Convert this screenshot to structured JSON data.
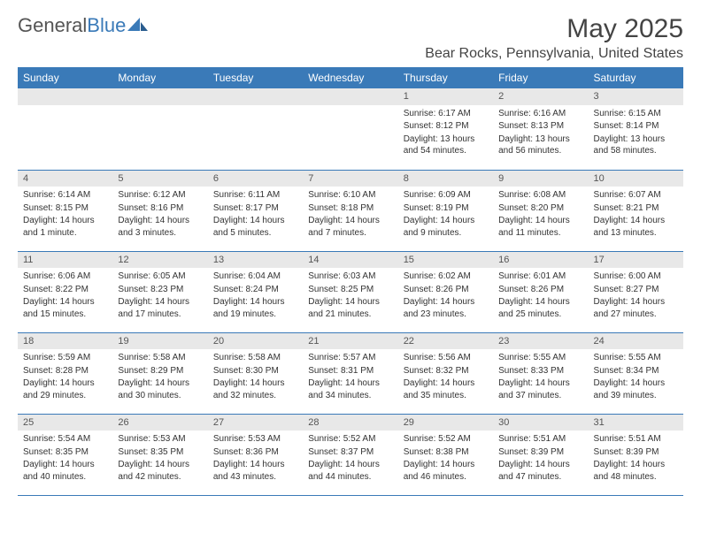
{
  "logo": {
    "part1": "General",
    "part2": "Blue"
  },
  "title": "May 2025",
  "location": "Bear Rocks, Pennsylvania, United States",
  "colors": {
    "header_bg": "#3a7ab8",
    "header_text": "#ffffff",
    "daynum_bg": "#e8e8e8",
    "row_border": "#3a7ab8",
    "body_text": "#333333",
    "logo_gray": "#555555",
    "logo_blue": "#3a7ab8",
    "page_bg": "#ffffff"
  },
  "typography": {
    "month_title_fontsize": 30,
    "location_fontsize": 16,
    "dayheader_fontsize": 12,
    "cell_fontsize": 10
  },
  "dayNames": [
    "Sunday",
    "Monday",
    "Tuesday",
    "Wednesday",
    "Thursday",
    "Friday",
    "Saturday"
  ],
  "weeks": [
    [
      {
        "n": "",
        "sunrise": "",
        "sunset": "",
        "daylight": ""
      },
      {
        "n": "",
        "sunrise": "",
        "sunset": "",
        "daylight": ""
      },
      {
        "n": "",
        "sunrise": "",
        "sunset": "",
        "daylight": ""
      },
      {
        "n": "",
        "sunrise": "",
        "sunset": "",
        "daylight": ""
      },
      {
        "n": "1",
        "sunrise": "Sunrise: 6:17 AM",
        "sunset": "Sunset: 8:12 PM",
        "daylight": "Daylight: 13 hours and 54 minutes."
      },
      {
        "n": "2",
        "sunrise": "Sunrise: 6:16 AM",
        "sunset": "Sunset: 8:13 PM",
        "daylight": "Daylight: 13 hours and 56 minutes."
      },
      {
        "n": "3",
        "sunrise": "Sunrise: 6:15 AM",
        "sunset": "Sunset: 8:14 PM",
        "daylight": "Daylight: 13 hours and 58 minutes."
      }
    ],
    [
      {
        "n": "4",
        "sunrise": "Sunrise: 6:14 AM",
        "sunset": "Sunset: 8:15 PM",
        "daylight": "Daylight: 14 hours and 1 minute."
      },
      {
        "n": "5",
        "sunrise": "Sunrise: 6:12 AM",
        "sunset": "Sunset: 8:16 PM",
        "daylight": "Daylight: 14 hours and 3 minutes."
      },
      {
        "n": "6",
        "sunrise": "Sunrise: 6:11 AM",
        "sunset": "Sunset: 8:17 PM",
        "daylight": "Daylight: 14 hours and 5 minutes."
      },
      {
        "n": "7",
        "sunrise": "Sunrise: 6:10 AM",
        "sunset": "Sunset: 8:18 PM",
        "daylight": "Daylight: 14 hours and 7 minutes."
      },
      {
        "n": "8",
        "sunrise": "Sunrise: 6:09 AM",
        "sunset": "Sunset: 8:19 PM",
        "daylight": "Daylight: 14 hours and 9 minutes."
      },
      {
        "n": "9",
        "sunrise": "Sunrise: 6:08 AM",
        "sunset": "Sunset: 8:20 PM",
        "daylight": "Daylight: 14 hours and 11 minutes."
      },
      {
        "n": "10",
        "sunrise": "Sunrise: 6:07 AM",
        "sunset": "Sunset: 8:21 PM",
        "daylight": "Daylight: 14 hours and 13 minutes."
      }
    ],
    [
      {
        "n": "11",
        "sunrise": "Sunrise: 6:06 AM",
        "sunset": "Sunset: 8:22 PM",
        "daylight": "Daylight: 14 hours and 15 minutes."
      },
      {
        "n": "12",
        "sunrise": "Sunrise: 6:05 AM",
        "sunset": "Sunset: 8:23 PM",
        "daylight": "Daylight: 14 hours and 17 minutes."
      },
      {
        "n": "13",
        "sunrise": "Sunrise: 6:04 AM",
        "sunset": "Sunset: 8:24 PM",
        "daylight": "Daylight: 14 hours and 19 minutes."
      },
      {
        "n": "14",
        "sunrise": "Sunrise: 6:03 AM",
        "sunset": "Sunset: 8:25 PM",
        "daylight": "Daylight: 14 hours and 21 minutes."
      },
      {
        "n": "15",
        "sunrise": "Sunrise: 6:02 AM",
        "sunset": "Sunset: 8:26 PM",
        "daylight": "Daylight: 14 hours and 23 minutes."
      },
      {
        "n": "16",
        "sunrise": "Sunrise: 6:01 AM",
        "sunset": "Sunset: 8:26 PM",
        "daylight": "Daylight: 14 hours and 25 minutes."
      },
      {
        "n": "17",
        "sunrise": "Sunrise: 6:00 AM",
        "sunset": "Sunset: 8:27 PM",
        "daylight": "Daylight: 14 hours and 27 minutes."
      }
    ],
    [
      {
        "n": "18",
        "sunrise": "Sunrise: 5:59 AM",
        "sunset": "Sunset: 8:28 PM",
        "daylight": "Daylight: 14 hours and 29 minutes."
      },
      {
        "n": "19",
        "sunrise": "Sunrise: 5:58 AM",
        "sunset": "Sunset: 8:29 PM",
        "daylight": "Daylight: 14 hours and 30 minutes."
      },
      {
        "n": "20",
        "sunrise": "Sunrise: 5:58 AM",
        "sunset": "Sunset: 8:30 PM",
        "daylight": "Daylight: 14 hours and 32 minutes."
      },
      {
        "n": "21",
        "sunrise": "Sunrise: 5:57 AM",
        "sunset": "Sunset: 8:31 PM",
        "daylight": "Daylight: 14 hours and 34 minutes."
      },
      {
        "n": "22",
        "sunrise": "Sunrise: 5:56 AM",
        "sunset": "Sunset: 8:32 PM",
        "daylight": "Daylight: 14 hours and 35 minutes."
      },
      {
        "n": "23",
        "sunrise": "Sunrise: 5:55 AM",
        "sunset": "Sunset: 8:33 PM",
        "daylight": "Daylight: 14 hours and 37 minutes."
      },
      {
        "n": "24",
        "sunrise": "Sunrise: 5:55 AM",
        "sunset": "Sunset: 8:34 PM",
        "daylight": "Daylight: 14 hours and 39 minutes."
      }
    ],
    [
      {
        "n": "25",
        "sunrise": "Sunrise: 5:54 AM",
        "sunset": "Sunset: 8:35 PM",
        "daylight": "Daylight: 14 hours and 40 minutes."
      },
      {
        "n": "26",
        "sunrise": "Sunrise: 5:53 AM",
        "sunset": "Sunset: 8:35 PM",
        "daylight": "Daylight: 14 hours and 42 minutes."
      },
      {
        "n": "27",
        "sunrise": "Sunrise: 5:53 AM",
        "sunset": "Sunset: 8:36 PM",
        "daylight": "Daylight: 14 hours and 43 minutes."
      },
      {
        "n": "28",
        "sunrise": "Sunrise: 5:52 AM",
        "sunset": "Sunset: 8:37 PM",
        "daylight": "Daylight: 14 hours and 44 minutes."
      },
      {
        "n": "29",
        "sunrise": "Sunrise: 5:52 AM",
        "sunset": "Sunset: 8:38 PM",
        "daylight": "Daylight: 14 hours and 46 minutes."
      },
      {
        "n": "30",
        "sunrise": "Sunrise: 5:51 AM",
        "sunset": "Sunset: 8:39 PM",
        "daylight": "Daylight: 14 hours and 47 minutes."
      },
      {
        "n": "31",
        "sunrise": "Sunrise: 5:51 AM",
        "sunset": "Sunset: 8:39 PM",
        "daylight": "Daylight: 14 hours and 48 minutes."
      }
    ]
  ]
}
